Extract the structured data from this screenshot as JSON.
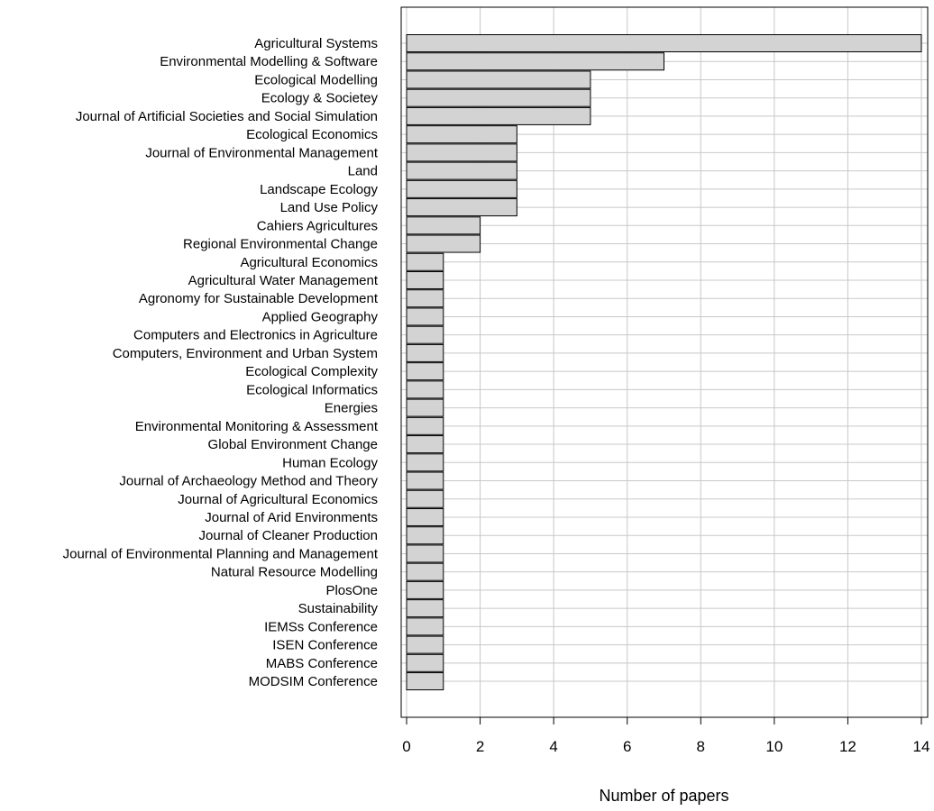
{
  "chart_data": {
    "type": "bar",
    "orientation": "horizontal",
    "title": "",
    "xlabel": "Number of papers",
    "ylabel": "",
    "xlim": [
      0,
      14
    ],
    "xticks": [
      0,
      2,
      4,
      6,
      8,
      10,
      12,
      14
    ],
    "grid": true,
    "bar_color": "#d3d3d3",
    "bar_edge_color": "#000000",
    "grid_color": "#c8c8c8",
    "categories": [
      "Agricultural Systems",
      "Environmental Modelling & Software",
      "Ecological Modelling",
      "Ecology & Societey",
      "Journal of Artificial Societies and Social Simulation",
      "Ecological Economics",
      "Journal of Environmental Management",
      "Land",
      "Landscape Ecology",
      "Land Use Policy",
      "Cahiers Agricultures",
      "Regional Environmental Change",
      "Agricultural Economics",
      "Agricultural Water Management",
      "Agronomy for Sustainable Development",
      "Applied Geography",
      "Computers and Electronics in Agriculture",
      "Computers, Environment and Urban System",
      "Ecological Complexity",
      "Ecological Informatics",
      "Energies",
      "Environmental Monitoring & Assessment",
      "Global Environment Change",
      "Human Ecology",
      "Journal of Archaeology Method and Theory",
      "Journal of Agricultural Economics",
      "Journal of Arid Environments",
      "Journal of Cleaner Production",
      "Journal of Environmental Planning and Management",
      "Natural Resource Modelling",
      "PlosOne",
      "Sustainability",
      "IEMSs Conference",
      "ISEN Conference",
      "MABS Conference",
      "MODSIM Conference"
    ],
    "values": [
      14,
      7,
      5,
      5,
      5,
      3,
      3,
      3,
      3,
      3,
      2,
      2,
      1,
      1,
      1,
      1,
      1,
      1,
      1,
      1,
      1,
      1,
      1,
      1,
      1,
      1,
      1,
      1,
      1,
      1,
      1,
      1,
      1,
      1,
      1,
      1
    ]
  }
}
